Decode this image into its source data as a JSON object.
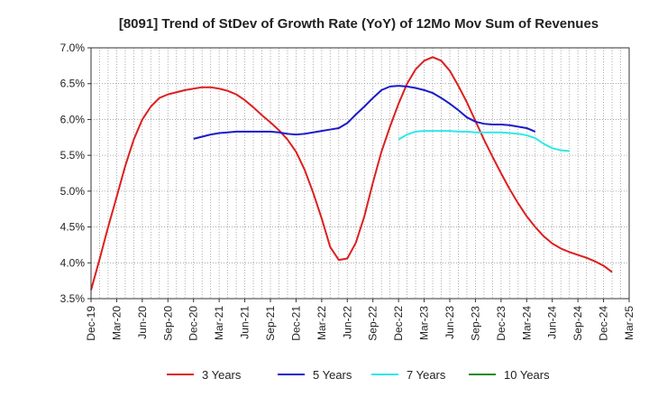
{
  "chart_data": {
    "type": "line",
    "title": "[8091]  Trend of StDev of Growth Rate (YoY) of 12Mo Mov Sum of Revenues",
    "xlabel": "",
    "ylabel": "",
    "ylim": [
      3.5,
      7.0
    ],
    "yticks": [
      3.5,
      4.0,
      4.5,
      5.0,
      5.5,
      6.0,
      6.5,
      7.0
    ],
    "ytick_labels": [
      "3.5%",
      "4.0%",
      "4.5%",
      "5.0%",
      "5.5%",
      "6.0%",
      "6.5%",
      "7.0%"
    ],
    "x_categories": [
      "Dec-19",
      "Mar-20",
      "Jun-20",
      "Sep-20",
      "Dec-20",
      "Mar-21",
      "Jun-21",
      "Sep-21",
      "Dec-21",
      "Mar-22",
      "Jun-22",
      "Sep-22",
      "Dec-22",
      "Mar-23",
      "Jun-23",
      "Sep-23",
      "Dec-23",
      "Mar-24",
      "Jun-24",
      "Sep-24",
      "Dec-24",
      "Mar-25"
    ],
    "grid": true,
    "legend_position": "bottom",
    "series": [
      {
        "name": "3 Years",
        "color": "#dd1f1f",
        "start_index": 0,
        "values": [
          3.62,
          4.05,
          4.5,
          4.92,
          5.35,
          5.72,
          6.0,
          6.18,
          6.3,
          6.35,
          6.38,
          6.41,
          6.43,
          6.45,
          6.45,
          6.43,
          6.4,
          6.35,
          6.27,
          6.17,
          6.06,
          5.96,
          5.85,
          5.72,
          5.55,
          5.3,
          4.98,
          4.62,
          4.22,
          4.04,
          4.06,
          4.28,
          4.65,
          5.12,
          5.55,
          5.9,
          6.22,
          6.5,
          6.7,
          6.82,
          6.87,
          6.82,
          6.68,
          6.47,
          6.24,
          5.98,
          5.72,
          5.48,
          5.25,
          5.03,
          4.83,
          4.65,
          4.5,
          4.37,
          4.27,
          4.2,
          4.15,
          4.11,
          4.07,
          4.02,
          3.96,
          3.87
        ]
      },
      {
        "name": "5 Years",
        "color": "#1a1acc",
        "start_index": 12,
        "values": [
          5.73,
          5.76,
          5.79,
          5.81,
          5.82,
          5.83,
          5.83,
          5.83,
          5.83,
          5.83,
          5.82,
          5.8,
          5.79,
          5.8,
          5.82,
          5.84,
          5.86,
          5.88,
          5.95,
          6.07,
          6.18,
          6.3,
          6.41,
          6.46,
          6.47,
          6.46,
          6.44,
          6.41,
          6.37,
          6.3,
          6.22,
          6.13,
          6.03,
          5.97,
          5.94,
          5.93,
          5.93,
          5.92,
          5.9,
          5.88,
          5.83
        ]
      },
      {
        "name": "7 Years",
        "color": "#2ee8e8",
        "start_index": 36,
        "values": [
          5.72,
          5.79,
          5.83,
          5.84,
          5.84,
          5.84,
          5.84,
          5.83,
          5.83,
          5.82,
          5.82,
          5.82,
          5.82,
          5.81,
          5.8,
          5.78,
          5.74,
          5.66,
          5.6,
          5.57,
          5.56
        ]
      },
      {
        "name": "10 Years",
        "color": "#1d8a1d",
        "start_index": 0,
        "values": []
      }
    ]
  }
}
